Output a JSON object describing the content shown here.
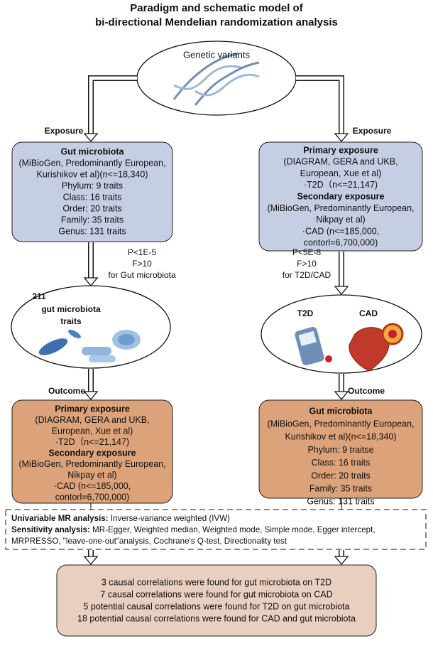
{
  "title": [
    "Paradigm and schematic model of",
    "bi-directional Mendelian randomization analysis"
  ],
  "top_node": {
    "label": "Genetic variants"
  },
  "left_branch": {
    "exposure_label": "Exposure",
    "exposure_box": {
      "sections": [
        {
          "heading": "Gut microbiota",
          "lines": [
            "(MiBioGen, Predominantly European,",
            "Kurishikov et al)(n<=18,340)",
            "Phylum: 9 traits",
            "Class: 16 traits",
            "Order: 20 traits",
            "Family: 35 traits",
            "Genus: 131 traits"
          ]
        }
      ]
    },
    "threshold": [
      "P<1E-5",
      "F>10",
      "for Gut microbiota"
    ],
    "selected_node": {
      "lines": [
        "211",
        "gut microbiota",
        "traits"
      ]
    },
    "outcome_label": "Outcome",
    "outcome_box": {
      "sections": [
        {
          "heading": "Primary exposure",
          "lines": [
            "(DIAGRAM, GERA and UKB,",
            "European, Xue et al)",
            "·T2D（n<=21,147)"
          ]
        },
        {
          "heading": "Secondary exposure",
          "lines": [
            "(MiBioGen, Predominantly  European,",
            "Nikpay et al)",
            "·CAD (n<=185,000,",
            "contorl=6,700,000)"
          ]
        }
      ]
    }
  },
  "right_branch": {
    "exposure_label": "Exposure",
    "exposure_box": {
      "sections": [
        {
          "heading": "Primary exposure",
          "lines": [
            "(DIAGRAM, GERA and UKB,",
            "European, Xue et al)",
            "·T2D（n<=21,147)"
          ]
        },
        {
          "heading": "Secondary exposure",
          "lines": [
            "(MiBioGen, Predominantly  European,",
            "Nikpay et al)",
            "·CAD (n<=185,000,",
            "contorl=6,700,000)"
          ]
        }
      ]
    },
    "threshold": [
      "P<5E-8",
      "F>10",
      "for T2D/CAD"
    ],
    "selected_node": {
      "labels": [
        "T2D",
        "CAD"
      ]
    },
    "outcome_label": "Outcome",
    "outcome_box": {
      "sections": [
        {
          "heading": "Gut microbiota",
          "lines": [
            "(MiBioGen, Predominantly European,",
            "Kurishikov et al)(n<=18,340)",
            "Phylum: 9 traitse",
            "Class: 16 traits",
            "Order: 20 traits",
            "Family: 35 traits",
            "Genus: 131 traits"
          ]
        }
      ]
    }
  },
  "methods": {
    "univariable": {
      "label": "Univariable MR analysis:",
      "text": " Inverse-variance weighted (IVW)"
    },
    "sensitivity": {
      "label": "Sensitivity analysis:",
      "lines": [
        " MR-Egger, Weighted median, Weighted mode, Simple mode, Egger intercept,",
        "MRPRESSO, \"leave-one-out\"analysis, Cochrane's Q-test, Directionality test"
      ]
    }
  },
  "results": [
    "3 causal correlations were found for gut microbiota on T2D",
    "7 causal correlations were found for gut microbiota on CAD",
    "5 potential causal correlations were found for T2D on gut microbiota",
    "18 potential causal correlations were found for CAD and gut microbiota"
  ]
}
